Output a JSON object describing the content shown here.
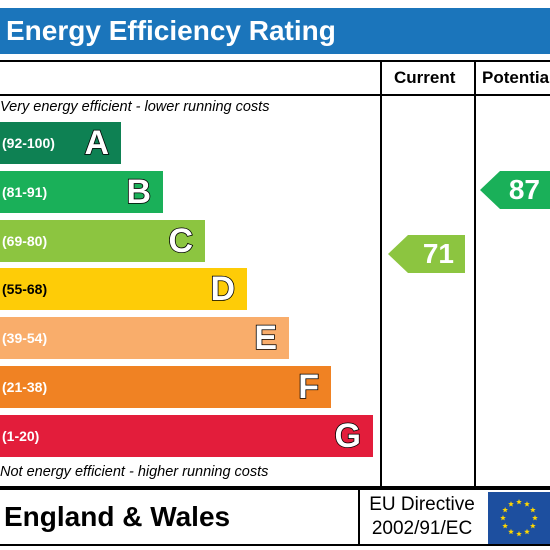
{
  "title": "Energy Efficiency Rating",
  "columns": {
    "current": "Current",
    "potential": "Potential"
  },
  "top_note": "Very energy efficient - lower running costs",
  "bottom_note": "Not energy efficient - higher running costs",
  "bands": [
    {
      "range": "(92-100)",
      "letter": "A",
      "color": "#0e8153"
    },
    {
      "range": "(81-91)",
      "letter": "B",
      "color": "#1ab059"
    },
    {
      "range": "(69-80)",
      "letter": "C",
      "color": "#8cc540"
    },
    {
      "range": "(55-68)",
      "letter": "D",
      "color": "#fecc07"
    },
    {
      "range": "(39-54)",
      "letter": "E",
      "color": "#f9ad6b"
    },
    {
      "range": "(21-38)",
      "letter": "F",
      "color": "#f08223"
    },
    {
      "range": "(1-20)",
      "letter": "G",
      "color": "#e31d3b"
    }
  ],
  "current_rating": {
    "value": "71",
    "band": "C",
    "color": "#8cc540"
  },
  "potential_rating": {
    "value": "87",
    "band": "B",
    "color": "#1ab059"
  },
  "footer": {
    "region": "England & Wales",
    "directive_line1": "EU Directive",
    "directive_line2": "2002/91/EC",
    "flag_icon": "eu-flag-icon",
    "flag_color": "#1d4f9f",
    "star_color": "#ffd700"
  }
}
